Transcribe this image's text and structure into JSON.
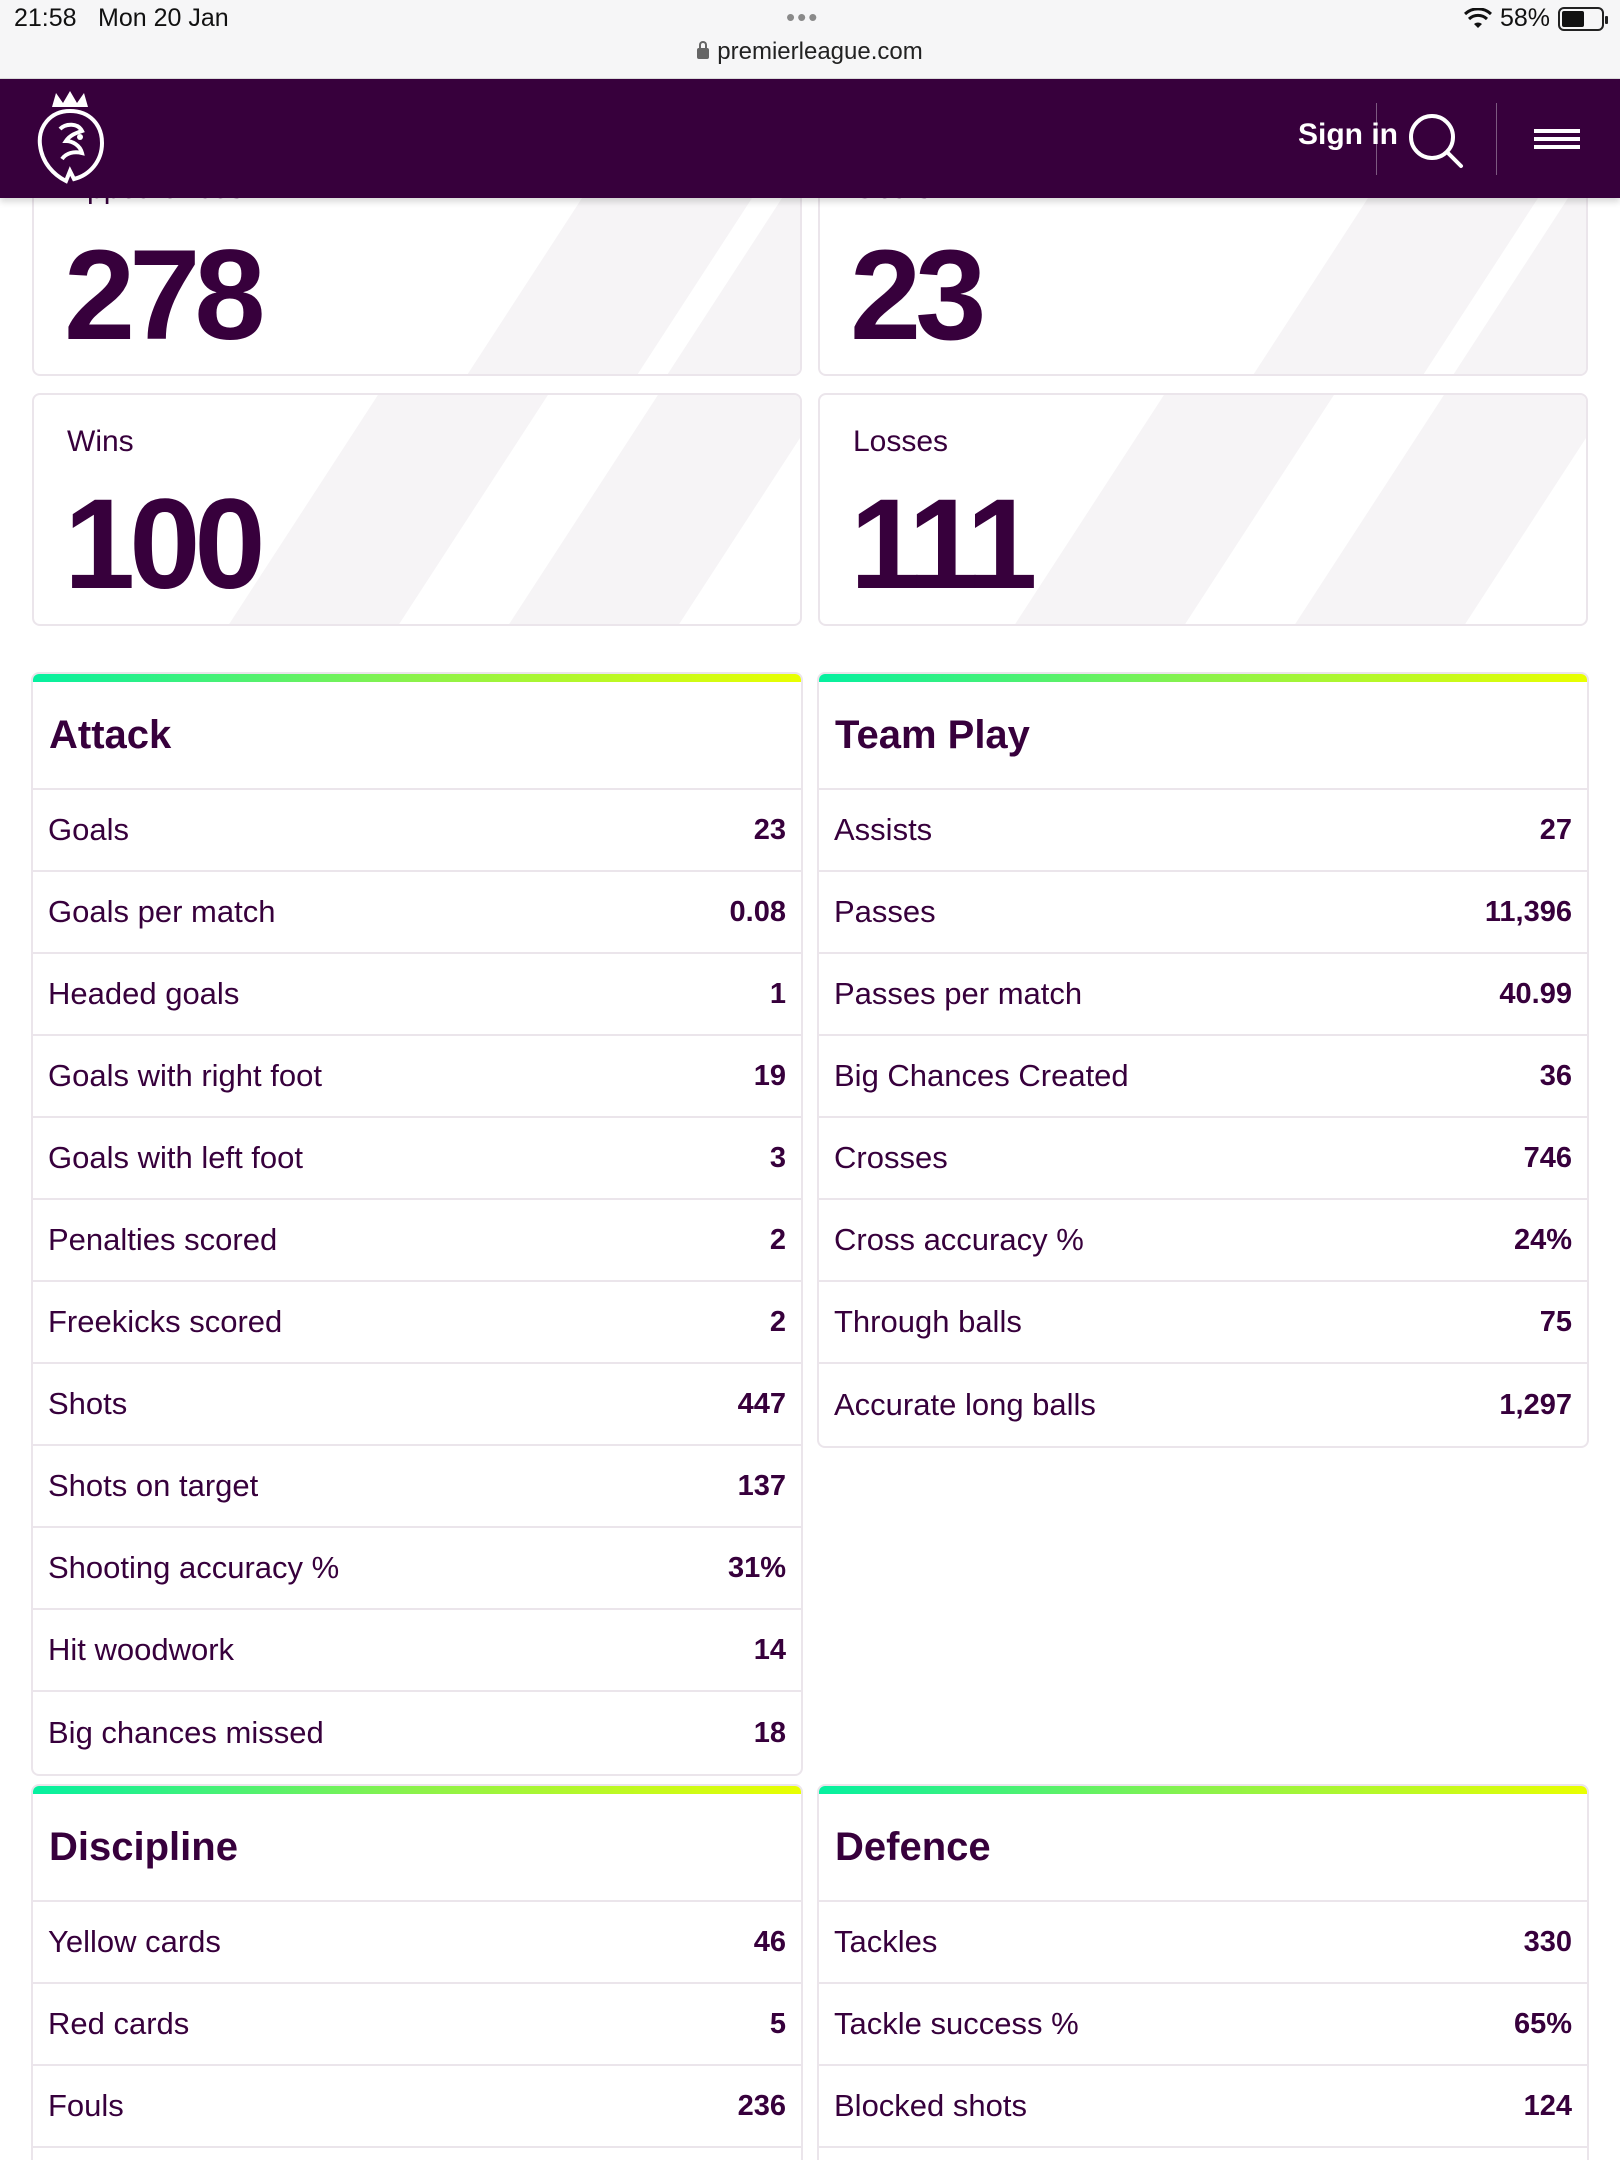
{
  "status_bar": {
    "time": "21:58",
    "date": "Mon 20 Jan",
    "battery": "58%",
    "url": "premierleague.com"
  },
  "header": {
    "sign_in": "Sign in",
    "logo_icon": "premier-league-lion-icon",
    "search_icon": "search-icon",
    "menu_icon": "hamburger-menu-icon"
  },
  "hero_stats": [
    {
      "label": "Appearances",
      "value": "278"
    },
    {
      "label": "Goals",
      "value": "23"
    },
    {
      "label": "Wins",
      "value": "100"
    },
    {
      "label": "Losses",
      "value": "111"
    }
  ],
  "attack": {
    "title": "Attack",
    "rows": [
      {
        "label": "Goals",
        "value": "23"
      },
      {
        "label": "Goals per match",
        "value": "0.08"
      },
      {
        "label": "Headed goals",
        "value": "1"
      },
      {
        "label": "Goals with right foot",
        "value": "19"
      },
      {
        "label": "Goals with left foot",
        "value": "3"
      },
      {
        "label": "Penalties scored",
        "value": "2"
      },
      {
        "label": "Freekicks scored",
        "value": "2"
      },
      {
        "label": "Shots",
        "value": "447"
      },
      {
        "label": "Shots on target",
        "value": "137"
      },
      {
        "label": "Shooting accuracy %",
        "value": "31%"
      },
      {
        "label": "Hit woodwork",
        "value": "14"
      },
      {
        "label": "Big chances missed",
        "value": "18"
      }
    ]
  },
  "team_play": {
    "title": "Team Play",
    "rows": [
      {
        "label": "Assists",
        "value": "27"
      },
      {
        "label": "Passes",
        "value": "11,396"
      },
      {
        "label": "Passes per match",
        "value": "40.99"
      },
      {
        "label": "Big Chances Created",
        "value": "36"
      },
      {
        "label": "Crosses",
        "value": "746"
      },
      {
        "label": "Cross accuracy %",
        "value": "24%"
      },
      {
        "label": "Through balls",
        "value": "75"
      },
      {
        "label": "Accurate long balls",
        "value": "1,297"
      }
    ]
  },
  "discipline": {
    "title": "Discipline",
    "rows": [
      {
        "label": "Yellow cards",
        "value": "46"
      },
      {
        "label": "Red cards",
        "value": "5"
      },
      {
        "label": "Fouls",
        "value": "236"
      }
    ]
  },
  "defence": {
    "title": "Defence",
    "rows": [
      {
        "label": "Tackles",
        "value": "330"
      },
      {
        "label": "Tackle success %",
        "value": "65%"
      },
      {
        "label": "Blocked shots",
        "value": "124"
      }
    ]
  },
  "colors": {
    "brand_purple": "#37003c",
    "accent_green": "#05f0a0",
    "accent_yellow": "#e9ff00"
  }
}
